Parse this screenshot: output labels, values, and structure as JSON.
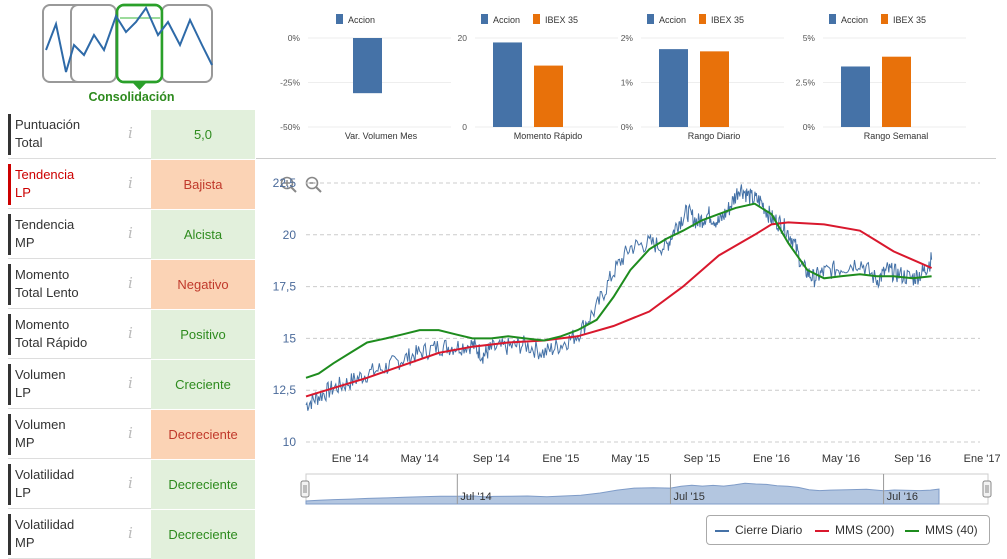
{
  "phase": {
    "label": "Consolidación",
    "colors": {
      "active": "#2aa02a",
      "frame": "#999999",
      "line": "#2e6aa8"
    }
  },
  "indicators": [
    {
      "name": "Puntuación\nTotal",
      "value": "5,0",
      "sentiment": "positive",
      "alert": false
    },
    {
      "name": "Tendencia\nLP",
      "value": "Bajista",
      "sentiment": "negative",
      "alert": true
    },
    {
      "name": "Tendencia\nMP",
      "value": "Alcista",
      "sentiment": "positive",
      "alert": false
    },
    {
      "name": "Momento\nTotal Lento",
      "value": "Negativo",
      "sentiment": "negative",
      "alert": false
    },
    {
      "name": "Momento\nTotal Rápido",
      "value": "Positivo",
      "sentiment": "positive",
      "alert": false
    },
    {
      "name": "Volumen\nLP",
      "value": "Creciente",
      "sentiment": "positive",
      "alert": false
    },
    {
      "name": "Volumen\nMP",
      "value": "Decreciente",
      "sentiment": "negative",
      "alert": false
    },
    {
      "name": "Volatilidad\nLP",
      "value": "Decreciente",
      "sentiment": "positive",
      "alert": false
    },
    {
      "name": "Volatilidad\nMP",
      "value": "Decreciente",
      "sentiment": "positive",
      "alert": false
    }
  ],
  "info_glyph": "i",
  "colors": {
    "accion": "#4572a7",
    "ibex": "#e8710a",
    "close": "#4572a7",
    "mms200": "#d9182d",
    "mms40": "#1e8c1e",
    "nav_fill": "#b3c6e0"
  },
  "chart_data": [
    {
      "type": "bar",
      "title": "Var. Volumen Mes",
      "series": [
        {
          "name": "Accion",
          "values": [
            -31
          ]
        }
      ],
      "yticks": [
        "0%",
        "-25%",
        "-50%"
      ],
      "ylim": [
        -50,
        0
      ]
    },
    {
      "type": "bar",
      "title": "Momento Rápido",
      "series": [
        {
          "name": "Accion",
          "values": [
            19
          ]
        },
        {
          "name": "IBEX 35",
          "values": [
            13.8
          ]
        }
      ],
      "yticks": [
        "20",
        "0"
      ],
      "ylim": [
        0,
        20
      ]
    },
    {
      "type": "bar",
      "title": "Rango Diario",
      "series": [
        {
          "name": "Accion",
          "values": [
            1.75
          ]
        },
        {
          "name": "IBEX 35",
          "values": [
            1.7
          ]
        }
      ],
      "yticks": [
        "2%",
        "1%",
        "0%"
      ],
      "ylim": [
        0,
        2
      ]
    },
    {
      "type": "bar",
      "title": "Rango Semanal",
      "series": [
        {
          "name": "Accion",
          "values": [
            3.4
          ]
        },
        {
          "name": "IBEX 35",
          "values": [
            3.95
          ]
        }
      ],
      "yticks": [
        "5%",
        "2.5%",
        "0%"
      ],
      "ylim": [
        0,
        5
      ]
    },
    {
      "type": "line",
      "title": "",
      "yticks": [
        10,
        12.5,
        15,
        17.5,
        20,
        22.5
      ],
      "ytick_labels": [
        "10",
        "12,5",
        "15",
        "17,5",
        "20",
        "22,5"
      ],
      "ylim": [
        10,
        22.5
      ],
      "xlim": [
        2013.79,
        2016.99
      ],
      "xticks": [
        {
          "x": 2014.0,
          "label": "Ene '14"
        },
        {
          "x": 2014.33,
          "label": "May '14"
        },
        {
          "x": 2014.67,
          "label": "Sep '14"
        },
        {
          "x": 2015.0,
          "label": "Ene '15"
        },
        {
          "x": 2015.33,
          "label": "May '15"
        },
        {
          "x": 2015.67,
          "label": "Sep '15"
        },
        {
          "x": 2016.0,
          "label": "Ene '16"
        },
        {
          "x": 2016.33,
          "label": "May '16"
        },
        {
          "x": 2016.67,
          "label": "Sep '16"
        },
        {
          "x": 2017.0,
          "label": "Ene '17"
        }
      ],
      "navigator_ticks": [
        {
          "x": 2014.5,
          "label": "Jul '14"
        },
        {
          "x": 2015.5,
          "label": "Jul '15"
        },
        {
          "x": 2016.5,
          "label": "Jul '16"
        }
      ],
      "series": [
        {
          "name": "Cierre Diario",
          "x": [
            2013.79,
            2013.85,
            2013.92,
            2014.0,
            2014.08,
            2014.17,
            2014.25,
            2014.33,
            2014.42,
            2014.5,
            2014.58,
            2014.63,
            2014.67,
            2014.75,
            2014.83,
            2014.92,
            2015.0,
            2015.08,
            2015.17,
            2015.25,
            2015.33,
            2015.42,
            2015.5,
            2015.55,
            2015.6,
            2015.65,
            2015.7,
            2015.75,
            2015.8,
            2015.85,
            2015.9,
            2015.95,
            2016.0,
            2016.05,
            2016.1,
            2016.15,
            2016.2,
            2016.25,
            2016.33,
            2016.42,
            2016.5,
            2016.55,
            2016.6,
            2016.67,
            2016.72,
            2016.76
          ],
          "y": [
            11.8,
            12.2,
            12.6,
            12.9,
            13.3,
            13.6,
            14.0,
            14.3,
            14.6,
            14.6,
            14.7,
            14.2,
            14.5,
            14.6,
            14.7,
            14.3,
            14.7,
            15.2,
            16.5,
            18.2,
            19.4,
            19.6,
            19.4,
            20.5,
            21.1,
            20.6,
            21.0,
            20.6,
            21.3,
            22.3,
            21.8,
            21.6,
            20.8,
            20.5,
            19.8,
            18.4,
            17.9,
            18.2,
            18.4,
            18.7,
            17.8,
            18.3,
            18.1,
            17.9,
            18.2,
            18.8
          ]
        },
        {
          "name": "MMS (200)",
          "x": [
            2013.79,
            2013.92,
            2014.08,
            2014.25,
            2014.42,
            2014.58,
            2014.75,
            2014.92,
            2015.08,
            2015.25,
            2015.42,
            2015.58,
            2015.75,
            2015.92,
            2016.0,
            2016.08,
            2016.25,
            2016.42,
            2016.5,
            2016.58,
            2016.67,
            2016.76
          ],
          "y": [
            12.2,
            12.6,
            13.1,
            13.7,
            14.3,
            14.6,
            14.8,
            14.9,
            15.1,
            15.6,
            16.3,
            17.5,
            19.0,
            20.0,
            20.5,
            20.6,
            20.5,
            20.2,
            19.7,
            19.2,
            18.8,
            18.4
          ]
        },
        {
          "name": "MMS (40)",
          "x": [
            2013.79,
            2013.85,
            2013.92,
            2014.0,
            2014.08,
            2014.17,
            2014.25,
            2014.33,
            2014.42,
            2014.5,
            2014.58,
            2014.67,
            2014.75,
            2014.83,
            2014.92,
            2015.0,
            2015.08,
            2015.17,
            2015.25,
            2015.33,
            2015.42,
            2015.5,
            2015.58,
            2015.67,
            2015.75,
            2015.83,
            2015.92,
            2016.0,
            2016.08,
            2016.17,
            2016.25,
            2016.33,
            2016.42,
            2016.5,
            2016.58,
            2016.67,
            2016.76
          ],
          "y": [
            13.1,
            13.3,
            13.8,
            14.3,
            14.8,
            15.0,
            15.2,
            15.4,
            15.4,
            15.2,
            15.0,
            15.0,
            15.1,
            15.0,
            14.9,
            15.1,
            15.4,
            15.9,
            17.0,
            18.3,
            19.3,
            19.8,
            20.2,
            20.7,
            21.0,
            21.3,
            21.5,
            21.0,
            19.6,
            18.3,
            17.9,
            18.0,
            18.1,
            18.0,
            18.0,
            17.9,
            18.0
          ]
        }
      ]
    }
  ],
  "legend": [
    {
      "label": "Cierre Diario",
      "color": "#4572a7"
    },
    {
      "label": "MMS (200)",
      "color": "#d9182d"
    },
    {
      "label": "MMS (40)",
      "color": "#1e8c1e"
    }
  ]
}
